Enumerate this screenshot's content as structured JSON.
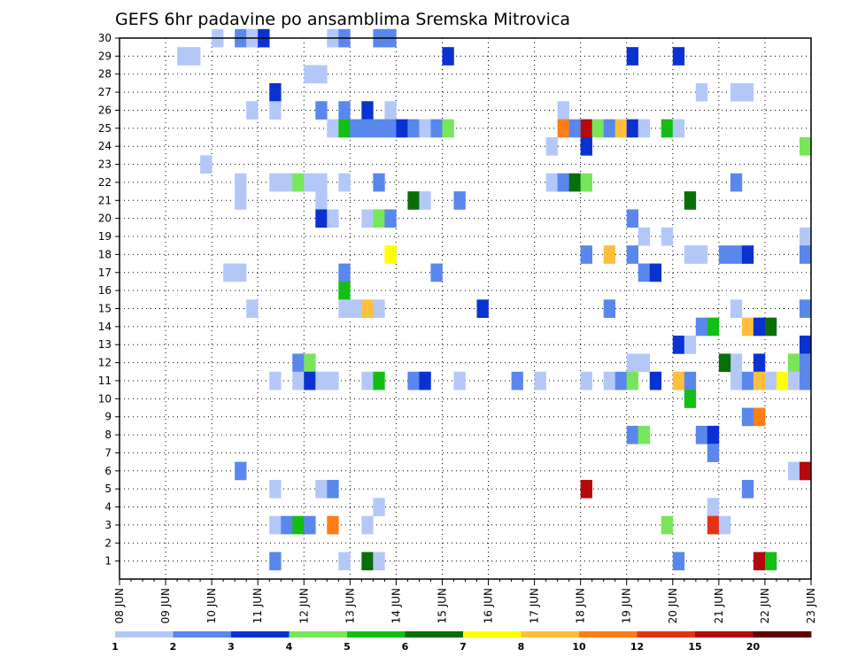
{
  "chart_data": {
    "type": "heatmap",
    "title": "GEFS 6hr padavine po ansamblima Sremska Mitrovica",
    "x_tick_labels": [
      "08 JUN",
      "09 JUN",
      "10 JUN",
      "11 JUN",
      "12 JUN",
      "13 JUN",
      "14 JUN",
      "15 JUN",
      "16 JUN",
      "17 JUN",
      "18 JUN",
      "19 JUN",
      "20 JUN",
      "21 JUN",
      "22 JUN",
      "23 JUN"
    ],
    "y_tick_labels": [
      "1",
      "2",
      "3",
      "4",
      "5",
      "6",
      "7",
      "8",
      "9",
      "10",
      "11",
      "12",
      "13",
      "14",
      "15",
      "16",
      "17",
      "18",
      "19",
      "20",
      "21",
      "22",
      "23",
      "24",
      "25",
      "26",
      "27",
      "28",
      "29",
      "30"
    ],
    "x_range_days": [
      0,
      15
    ],
    "y_range": [
      0,
      30
    ],
    "steps_per_day": 4,
    "grid": true,
    "grid_style": "dotted",
    "legend": {
      "position": "bottom",
      "labels": [
        "1",
        "2",
        "3",
        "4",
        "5",
        "6",
        "7",
        "8",
        "10",
        "12",
        "15",
        "20"
      ],
      "colors": [
        "#b4c8f8",
        "#5a87ec",
        "#0a32d2",
        "#78e65a",
        "#14be14",
        "#0a6e0a",
        "#ffff00",
        "#ffbe3c",
        "#ff7d14",
        "#e63214",
        "#b40a0a",
        "#640000"
      ]
    },
    "cells": [
      [
        8,
        30,
        1
      ],
      [
        10,
        30,
        2
      ],
      [
        11,
        30,
        1
      ],
      [
        12,
        30,
        3
      ],
      [
        18,
        30,
        1
      ],
      [
        19,
        30,
        2
      ],
      [
        22,
        30,
        2
      ],
      [
        23,
        30,
        2
      ],
      [
        5,
        29,
        1
      ],
      [
        6,
        29,
        1
      ],
      [
        28,
        29,
        3
      ],
      [
        44,
        29,
        3
      ],
      [
        48,
        29,
        3
      ],
      [
        16,
        28,
        1
      ],
      [
        17,
        28,
        1
      ],
      [
        13,
        27,
        3
      ],
      [
        50,
        27,
        1
      ],
      [
        53,
        27,
        1
      ],
      [
        54,
        27,
        1
      ],
      [
        11,
        26,
        1
      ],
      [
        13,
        26,
        1
      ],
      [
        17,
        26,
        2
      ],
      [
        19,
        26,
        2
      ],
      [
        21,
        26,
        3
      ],
      [
        23,
        26,
        1
      ],
      [
        38,
        26,
        1
      ],
      [
        18,
        25,
        1
      ],
      [
        19,
        25,
        5
      ],
      [
        20,
        25,
        2
      ],
      [
        21,
        25,
        2
      ],
      [
        22,
        25,
        2
      ],
      [
        23,
        25,
        2
      ],
      [
        24,
        25,
        3
      ],
      [
        25,
        25,
        2
      ],
      [
        26,
        25,
        1
      ],
      [
        27,
        25,
        2
      ],
      [
        28,
        25,
        4
      ],
      [
        38,
        25,
        9
      ],
      [
        39,
        25,
        2
      ],
      [
        40,
        25,
        11
      ],
      [
        41,
        25,
        4
      ],
      [
        42,
        25,
        2
      ],
      [
        43,
        25,
        8
      ],
      [
        44,
        25,
        3
      ],
      [
        45,
        25,
        1
      ],
      [
        47,
        25,
        5
      ],
      [
        48,
        25,
        1
      ],
      [
        37,
        24,
        1
      ],
      [
        40,
        24,
        3
      ],
      [
        59,
        24,
        4
      ],
      [
        7,
        23,
        1
      ],
      [
        10,
        22,
        1
      ],
      [
        13,
        22,
        1
      ],
      [
        14,
        22,
        1
      ],
      [
        15,
        22,
        4
      ],
      [
        16,
        22,
        1
      ],
      [
        17,
        22,
        1
      ],
      [
        19,
        22,
        1
      ],
      [
        22,
        22,
        2
      ],
      [
        37,
        22,
        1
      ],
      [
        38,
        22,
        2
      ],
      [
        39,
        22,
        6
      ],
      [
        40,
        22,
        4
      ],
      [
        53,
        22,
        2
      ],
      [
        10,
        21,
        1
      ],
      [
        17,
        21,
        1
      ],
      [
        25,
        21,
        6
      ],
      [
        26,
        21,
        1
      ],
      [
        29,
        21,
        2
      ],
      [
        49,
        21,
        6
      ],
      [
        17,
        20,
        3
      ],
      [
        18,
        20,
        1
      ],
      [
        21,
        20,
        1
      ],
      [
        22,
        20,
        4
      ],
      [
        23,
        20,
        2
      ],
      [
        44,
        20,
        2
      ],
      [
        45,
        19,
        1
      ],
      [
        47,
        19,
        1
      ],
      [
        59,
        19,
        1
      ],
      [
        23,
        18,
        7
      ],
      [
        40,
        18,
        2
      ],
      [
        42,
        18,
        8
      ],
      [
        44,
        18,
        2
      ],
      [
        49,
        18,
        1
      ],
      [
        50,
        18,
        1
      ],
      [
        52,
        18,
        2
      ],
      [
        53,
        18,
        2
      ],
      [
        54,
        18,
        3
      ],
      [
        59,
        18,
        2
      ],
      [
        9,
        17,
        1
      ],
      [
        10,
        17,
        1
      ],
      [
        19,
        17,
        2
      ],
      [
        27,
        17,
        2
      ],
      [
        45,
        17,
        2
      ],
      [
        46,
        17,
        3
      ],
      [
        19,
        16,
        5
      ],
      [
        11,
        15,
        1
      ],
      [
        19,
        15,
        1
      ],
      [
        20,
        15,
        1
      ],
      [
        21,
        15,
        8
      ],
      [
        22,
        15,
        1
      ],
      [
        31,
        15,
        3
      ],
      [
        42,
        15,
        2
      ],
      [
        53,
        15,
        1
      ],
      [
        59,
        15,
        2
      ],
      [
        50,
        14,
        2
      ],
      [
        51,
        14,
        5
      ],
      [
        54,
        14,
        8
      ],
      [
        55,
        14,
        3
      ],
      [
        56,
        14,
        6
      ],
      [
        48,
        13,
        3
      ],
      [
        49,
        13,
        1
      ],
      [
        59,
        13,
        3
      ],
      [
        15,
        12,
        2
      ],
      [
        16,
        12,
        4
      ],
      [
        44,
        12,
        1
      ],
      [
        45,
        12,
        1
      ],
      [
        53,
        12,
        1
      ],
      [
        55,
        12,
        3
      ],
      [
        52,
        12,
        6
      ],
      [
        58,
        12,
        4
      ],
      [
        59,
        12,
        2
      ],
      [
        13,
        11,
        1
      ],
      [
        15,
        11,
        1
      ],
      [
        16,
        11,
        3
      ],
      [
        17,
        11,
        1
      ],
      [
        18,
        11,
        1
      ],
      [
        21,
        11,
        1
      ],
      [
        22,
        11,
        5
      ],
      [
        25,
        11,
        2
      ],
      [
        26,
        11,
        3
      ],
      [
        29,
        11,
        1
      ],
      [
        34,
        11,
        2
      ],
      [
        36,
        11,
        1
      ],
      [
        40,
        11,
        1
      ],
      [
        42,
        11,
        1
      ],
      [
        43,
        11,
        2
      ],
      [
        44,
        11,
        4
      ],
      [
        46,
        11,
        3
      ],
      [
        48,
        11,
        8
      ],
      [
        49,
        11,
        2
      ],
      [
        53,
        11,
        1
      ],
      [
        54,
        11,
        2
      ],
      [
        55,
        11,
        8
      ],
      [
        56,
        11,
        1
      ],
      [
        57,
        11,
        7
      ],
      [
        58,
        11,
        1
      ],
      [
        59,
        11,
        2
      ],
      [
        49,
        10,
        5
      ],
      [
        54,
        9,
        2
      ],
      [
        55,
        9,
        9
      ],
      [
        44,
        8,
        2
      ],
      [
        45,
        8,
        4
      ],
      [
        50,
        8,
        2
      ],
      [
        51,
        8,
        3
      ],
      [
        51,
        7,
        2
      ],
      [
        10,
        6,
        2
      ],
      [
        58,
        6,
        1
      ],
      [
        59,
        6,
        11
      ],
      [
        13,
        5,
        1
      ],
      [
        17,
        5,
        1
      ],
      [
        18,
        5,
        2
      ],
      [
        40,
        5,
        11
      ],
      [
        54,
        5,
        2
      ],
      [
        22,
        4,
        1
      ],
      [
        51,
        4,
        1
      ],
      [
        13,
        3,
        1
      ],
      [
        14,
        3,
        2
      ],
      [
        15,
        3,
        5
      ],
      [
        16,
        3,
        2
      ],
      [
        18,
        3,
        9
      ],
      [
        21,
        3,
        1
      ],
      [
        47,
        3,
        4
      ],
      [
        51,
        3,
        10
      ],
      [
        52,
        3,
        1
      ],
      [
        13,
        1,
        2
      ],
      [
        19,
        1,
        1
      ],
      [
        21,
        1,
        6
      ],
      [
        22,
        1,
        1
      ],
      [
        48,
        1,
        2
      ],
      [
        55,
        1,
        11
      ],
      [
        56,
        1,
        5
      ]
    ]
  }
}
